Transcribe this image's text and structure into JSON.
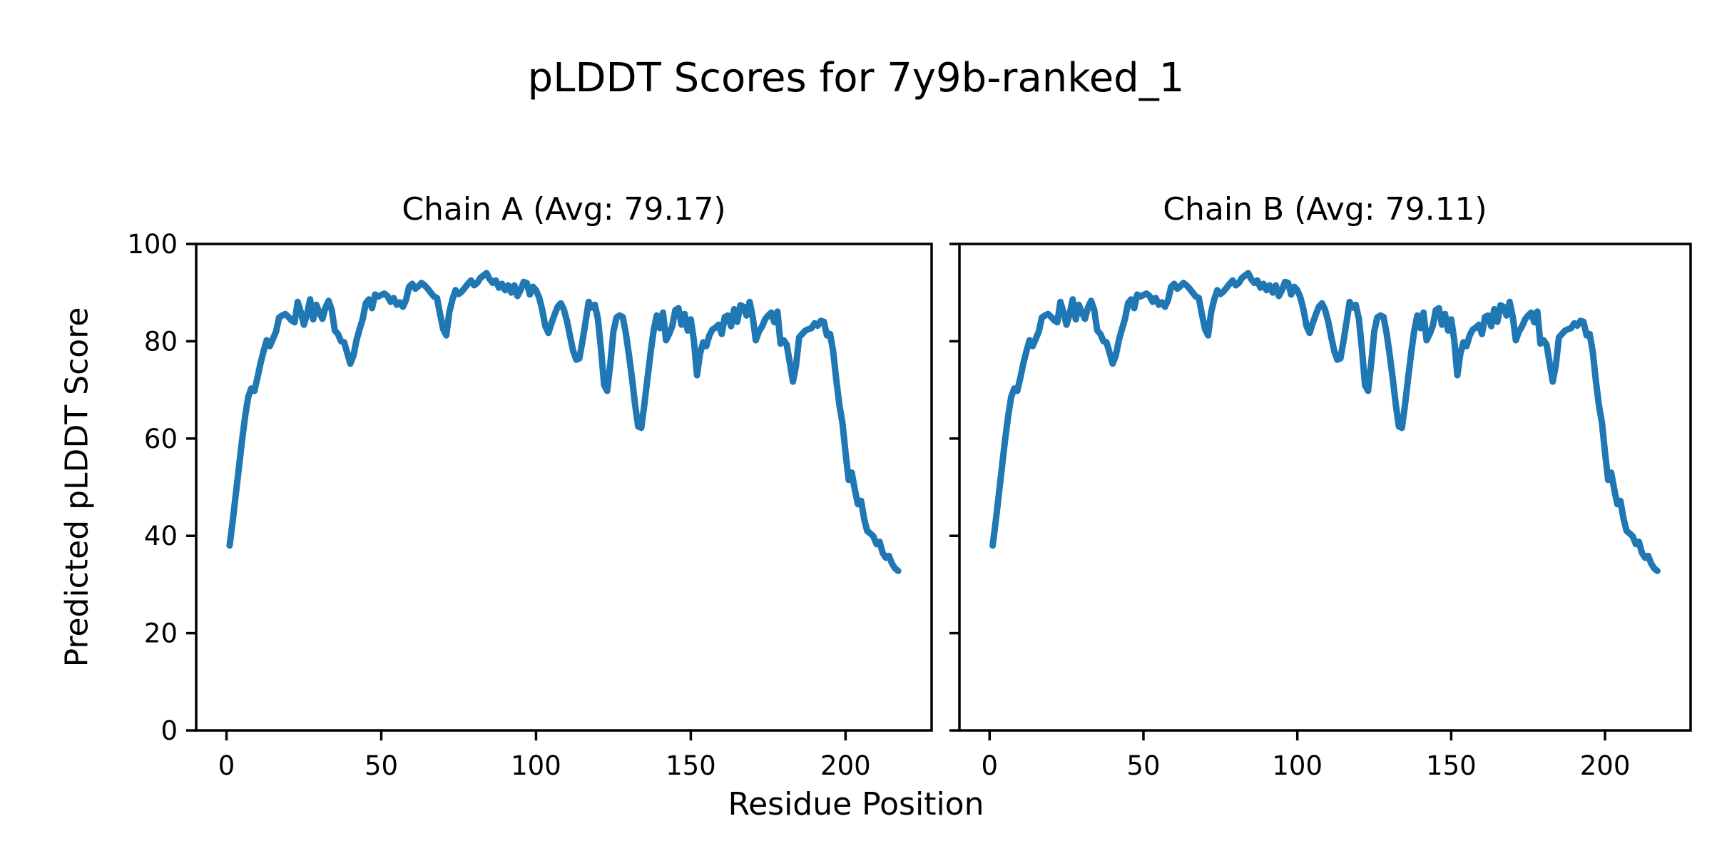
{
  "figure": {
    "title": "pLDDT Scores for 7y9b-ranked_1",
    "xlabel": "Residue Position",
    "ylabel": "Predicted pLDDT Score",
    "background": "#ffffff",
    "line_color": "#1f77b4",
    "axis_color": "#000000"
  },
  "chart_data": [
    {
      "type": "line",
      "title": "Chain A (Avg: 79.17)",
      "chain": "A",
      "avg": 79.17,
      "x_start": 1,
      "xlim": [
        -9.8,
        227.8
      ],
      "ylim": [
        0,
        100
      ],
      "xticks": [
        0,
        50,
        100,
        150,
        200
      ],
      "yticks": [
        0,
        20,
        40,
        60,
        80,
        100
      ],
      "show_y_tick_labels": true,
      "grid": false,
      "legend": "none",
      "values": [
        38.0,
        43.0,
        48.5,
        54.0,
        59.5,
        64.5,
        68.5,
        70.3,
        69.8,
        72.5,
        75.5,
        78.0,
        80.2,
        79.0,
        80.5,
        82.0,
        84.9,
        85.3,
        85.6,
        85.0,
        84.3,
        83.9,
        88.1,
        86.0,
        83.4,
        85.5,
        88.6,
        84.5,
        87.5,
        85.9,
        84.6,
        87.0,
        88.3,
        86.4,
        82.2,
        81.5,
        80.0,
        79.8,
        77.6,
        75.4,
        77.0,
        80.2,
        82.5,
        84.6,
        87.8,
        88.6,
        86.8,
        89.6,
        89.2,
        89.5,
        89.8,
        89.3,
        88.1,
        88.9,
        87.5,
        88.0,
        87.1,
        88.5,
        91.2,
        91.8,
        90.8,
        91.3,
        92.0,
        91.5,
        90.8,
        90.0,
        89.2,
        88.9,
        85.6,
        82.5,
        81.2,
        86.0,
        88.6,
        90.5,
        89.7,
        90.2,
        91.0,
        91.8,
        92.5,
        91.5,
        92.0,
        93.0,
        93.5,
        94.0,
        92.8,
        92.0,
        92.5,
        91.0,
        91.8,
        90.5,
        91.5,
        90.0,
        91.5,
        89.3,
        90.5,
        92.2,
        92.0,
        89.6,
        91.2,
        90.5,
        89.0,
        86.5,
        83.1,
        81.7,
        83.7,
        85.5,
        87.1,
        87.8,
        86.5,
        84.2,
        81.0,
        78.0,
        76.2,
        76.5,
        80.0,
        84.0,
        88.1,
        86.9,
        87.5,
        84.6,
        78.3,
        71.0,
        69.8,
        75.4,
        82.0,
        84.9,
        85.3,
        85.0,
        81.7,
        77.3,
        72.4,
        67.0,
        62.5,
        62.2,
        67.0,
        72.4,
        77.6,
        82.2,
        85.3,
        82.7,
        85.9,
        80.2,
        81.5,
        83.1,
        86.4,
        86.8,
        83.4,
        85.6,
        82.2,
        84.5,
        80.2,
        73.0,
        77.5,
        79.8,
        79.0,
        81.2,
        82.4,
        82.8,
        83.4,
        81.5,
        85.0,
        85.3,
        83.1,
        86.6,
        84.0,
        87.4,
        87.1,
        85.3,
        88.1,
        85.0,
        80.2,
        82.0,
        83.0,
        84.5,
        85.3,
        85.9,
        83.9,
        86.1,
        79.5,
        80.2,
        79.3,
        75.5,
        71.7,
        75.0,
        80.8,
        81.5,
        82.2,
        82.5,
        82.7,
        83.7,
        83.2,
        84.2,
        84.0,
        81.2,
        81.5,
        77.9,
        72.0,
        66.9,
        63.2,
        57.0,
        51.5,
        53.0,
        49.5,
        46.5,
        47.2,
        43.5,
        41.0,
        40.5,
        39.9,
        38.3,
        38.8,
        36.5,
        35.5,
        35.9,
        34.3,
        33.3,
        32.8
      ]
    },
    {
      "type": "line",
      "title": "Chain B (Avg: 79.11)",
      "chain": "B",
      "avg": 79.11,
      "x_start": 1,
      "xlim": [
        -9.8,
        227.8
      ],
      "ylim": [
        0,
        100
      ],
      "xticks": [
        0,
        50,
        100,
        150,
        200
      ],
      "yticks": [
        0,
        20,
        40,
        60,
        80,
        100
      ],
      "show_y_tick_labels": false,
      "grid": false,
      "legend": "none",
      "values": [
        38.0,
        43.0,
        48.5,
        54.0,
        59.5,
        64.5,
        68.5,
        70.3,
        69.8,
        72.5,
        75.5,
        78.0,
        80.2,
        79.0,
        80.5,
        82.0,
        84.9,
        85.3,
        85.6,
        85.0,
        84.3,
        83.9,
        88.1,
        86.0,
        83.4,
        85.5,
        88.6,
        84.5,
        87.5,
        85.9,
        84.6,
        87.0,
        88.3,
        86.4,
        82.2,
        81.5,
        80.0,
        79.8,
        77.6,
        75.4,
        77.0,
        80.2,
        82.5,
        84.6,
        87.8,
        88.6,
        86.8,
        89.6,
        89.2,
        89.5,
        89.8,
        89.3,
        88.1,
        88.9,
        87.5,
        88.0,
        87.1,
        88.5,
        91.2,
        91.8,
        90.8,
        91.3,
        92.0,
        91.5,
        90.8,
        90.0,
        89.2,
        88.9,
        85.6,
        82.5,
        81.2,
        86.0,
        88.6,
        90.5,
        89.7,
        90.2,
        91.0,
        91.8,
        92.5,
        91.5,
        92.0,
        93.0,
        93.5,
        94.0,
        92.8,
        92.0,
        92.5,
        91.0,
        91.8,
        90.5,
        91.5,
        90.0,
        91.5,
        89.3,
        90.5,
        92.2,
        92.0,
        89.6,
        91.2,
        90.5,
        89.0,
        86.5,
        83.1,
        81.7,
        83.7,
        85.5,
        87.1,
        87.8,
        86.5,
        84.2,
        81.0,
        78.0,
        76.2,
        76.5,
        80.0,
        84.0,
        88.1,
        86.9,
        87.5,
        84.6,
        78.3,
        71.0,
        69.8,
        75.4,
        82.0,
        84.9,
        85.3,
        85.0,
        81.7,
        77.3,
        72.4,
        67.0,
        62.5,
        62.2,
        67.0,
        72.4,
        77.6,
        82.2,
        85.3,
        82.7,
        85.9,
        80.2,
        81.5,
        83.1,
        86.4,
        86.8,
        83.4,
        85.6,
        82.2,
        84.5,
        80.2,
        73.0,
        77.5,
        79.8,
        79.0,
        81.2,
        82.4,
        82.8,
        83.4,
        81.5,
        85.0,
        85.3,
        83.1,
        86.6,
        84.0,
        87.4,
        87.1,
        85.3,
        88.1,
        85.0,
        80.2,
        82.0,
        83.0,
        84.5,
        85.3,
        85.9,
        83.9,
        86.1,
        79.5,
        80.2,
        79.3,
        75.5,
        71.7,
        75.0,
        80.8,
        81.5,
        82.2,
        82.5,
        82.7,
        83.7,
        83.2,
        84.2,
        84.0,
        81.2,
        81.5,
        77.9,
        72.0,
        66.9,
        63.2,
        57.0,
        51.5,
        53.0,
        49.5,
        46.5,
        47.2,
        43.5,
        41.0,
        40.5,
        39.9,
        38.3,
        38.8,
        36.5,
        35.5,
        35.9,
        34.3,
        33.3,
        32.8
      ]
    }
  ]
}
